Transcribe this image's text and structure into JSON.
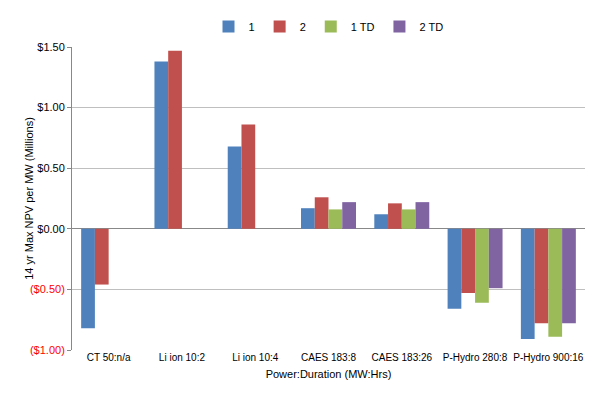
{
  "chart_data": {
    "type": "bar",
    "x_label": "Power:Duration (MW:Hrs)",
    "y_label": "14 yr Max NPV per MW (Millions)",
    "categories": [
      "CT 50:n/a",
      "Li ion 10:2",
      "Li ion 10:4",
      "CAES 183:8",
      "CAES 183:26",
      "P-Hydro 280:8",
      "P-Hydro 900:16"
    ],
    "series": [
      {
        "name": "1",
        "color": "#4f81bd",
        "values": [
          -0.82,
          1.38,
          0.68,
          0.17,
          0.12,
          -0.66,
          -0.91
        ]
      },
      {
        "name": "2",
        "color": "#c0504d",
        "values": [
          -0.46,
          1.47,
          0.86,
          0.26,
          0.21,
          -0.53,
          -0.78
        ]
      },
      {
        "name": "1 TD",
        "color": "#9bbb59",
        "values": [
          null,
          null,
          null,
          0.16,
          0.16,
          -0.61,
          -0.89
        ]
      },
      {
        "name": "2 TD",
        "color": "#8064a2",
        "values": [
          null,
          null,
          null,
          0.22,
          0.22,
          -0.49,
          -0.78
        ]
      }
    ],
    "ylim": [
      -1,
      1.5
    ],
    "yticks": [
      {
        "value": -1,
        "label": "($1.00)"
      },
      {
        "value": -0.5,
        "label": "($0.50)"
      },
      {
        "value": 0,
        "label": "$0.00"
      },
      {
        "value": 0.5,
        "label": "$0.50"
      },
      {
        "value": 1,
        "label": "$1.00"
      },
      {
        "value": 1.5,
        "label": "$1.50"
      }
    ],
    "grid": true,
    "legend": "top"
  }
}
